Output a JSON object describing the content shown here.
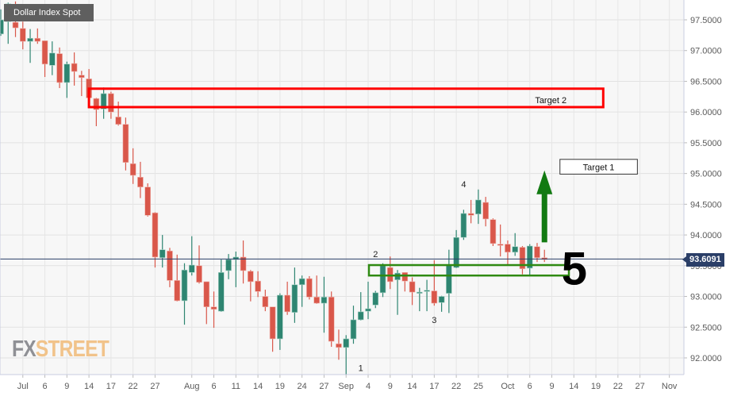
{
  "title": "Dollar Index Spot",
  "logo": {
    "part1": "FX",
    "part2": "STREET"
  },
  "current_price_label": "93.6091",
  "colors": {
    "up": "#2e8571",
    "down": "#d9574a",
    "price_line": "#2b3f68",
    "target2_box": "#ff0000",
    "support_box": "#2f8a12",
    "arrow": "#127a12"
  },
  "chart_data": {
    "type": "candlestick",
    "title": "Dollar Index Spot",
    "ylim": [
      91.7,
      97.8
    ],
    "grid": true,
    "y_ticks": [
      "92.0000",
      "92.5000",
      "93.0000",
      "93.5000",
      "94.0000",
      "94.5000",
      "95.0000",
      "95.5000",
      "96.0000",
      "96.5000",
      "97.0000",
      "97.5000"
    ],
    "x_ticks": [
      {
        "date": "2020-07-01",
        "label": "Jul"
      },
      {
        "date": "2020-07-06",
        "label": "6"
      },
      {
        "date": "2020-07-09",
        "label": "9"
      },
      {
        "date": "2020-07-14",
        "label": "14"
      },
      {
        "date": "2020-07-17",
        "label": "17"
      },
      {
        "date": "2020-07-22",
        "label": "22"
      },
      {
        "date": "2020-07-27",
        "label": "27"
      },
      {
        "date": "2020-08-03",
        "label": "Aug"
      },
      {
        "date": "2020-08-06",
        "label": "6"
      },
      {
        "date": "2020-08-11",
        "label": "11"
      },
      {
        "date": "2020-08-14",
        "label": "14"
      },
      {
        "date": "2020-08-19",
        "label": "19"
      },
      {
        "date": "2020-08-24",
        "label": "24"
      },
      {
        "date": "2020-08-27",
        "label": "27"
      },
      {
        "date": "2020-09-01",
        "label": "Sep"
      },
      {
        "date": "2020-09-04",
        "label": "4"
      },
      {
        "date": "2020-09-09",
        "label": "9"
      },
      {
        "date": "2020-09-14",
        "label": "14"
      },
      {
        "date": "2020-09-17",
        "label": "17"
      },
      {
        "date": "2020-09-22",
        "label": "22"
      },
      {
        "date": "2020-09-25",
        "label": "25"
      },
      {
        "date": "2020-10-01",
        "label": "Oct"
      },
      {
        "date": "2020-10-06",
        "label": "6"
      },
      {
        "date": "2020-10-09",
        "label": "9"
      },
      {
        "date": "2020-10-14",
        "label": "14"
      },
      {
        "date": "2020-10-19",
        "label": "19"
      },
      {
        "date": "2020-10-22",
        "label": "22"
      },
      {
        "date": "2020-10-27",
        "label": "27"
      },
      {
        "date": "2020-11-02",
        "label": "Nov"
      }
    ],
    "current_price": 93.6091,
    "columns": [
      "date",
      "open",
      "high",
      "low",
      "close"
    ],
    "candles": [
      [
        "2020-06-26",
        97.27,
        97.67,
        97.24,
        97.5
      ],
      [
        "2020-06-29",
        97.47,
        97.78,
        97.11,
        97.76
      ],
      [
        "2020-06-30",
        97.46,
        97.8,
        97.22,
        97.37
      ],
      [
        "2020-07-01",
        97.36,
        97.47,
        97.02,
        97.15
      ],
      [
        "2020-07-02",
        97.15,
        97.35,
        96.8,
        97.2
      ],
      [
        "2020-07-03",
        97.2,
        97.36,
        97.11,
        97.15
      ],
      [
        "2020-07-06",
        97.16,
        97.16,
        96.57,
        96.78
      ],
      [
        "2020-07-07",
        96.76,
        97.15,
        96.6,
        96.96
      ],
      [
        "2020-07-08",
        96.95,
        97.05,
        96.39,
        96.48
      ],
      [
        "2020-07-09",
        96.48,
        96.82,
        96.23,
        96.78
      ],
      [
        "2020-07-10",
        96.79,
        96.97,
        96.43,
        96.66
      ],
      [
        "2020-07-13",
        96.6,
        96.67,
        96.26,
        96.56
      ],
      [
        "2020-07-14",
        96.54,
        96.7,
        96.19,
        96.23
      ],
      [
        "2020-07-15",
        96.22,
        96.23,
        95.77,
        96.04
      ],
      [
        "2020-07-16",
        96.05,
        96.4,
        95.89,
        96.3
      ],
      [
        "2020-07-17",
        96.3,
        96.33,
        95.89,
        96.0
      ],
      [
        "2020-07-20",
        95.92,
        96.17,
        95.78,
        95.8
      ],
      [
        "2020-07-21",
        95.8,
        95.91,
        95.05,
        95.18
      ],
      [
        "2020-07-22",
        95.16,
        95.41,
        94.83,
        94.97
      ],
      [
        "2020-07-23",
        94.94,
        95.19,
        94.6,
        94.78
      ],
      [
        "2020-07-24",
        94.78,
        94.84,
        94.3,
        94.32
      ],
      [
        "2020-07-27",
        94.36,
        94.37,
        93.47,
        93.64
      ],
      [
        "2020-07-28",
        93.63,
        94.0,
        93.47,
        93.76
      ],
      [
        "2020-07-29",
        93.74,
        93.79,
        93.15,
        93.26
      ],
      [
        "2020-07-30",
        93.26,
        93.68,
        92.92,
        92.93
      ],
      [
        "2020-07-31",
        92.93,
        93.54,
        92.54,
        93.43
      ],
      [
        "2020-08-03",
        93.39,
        93.98,
        93.34,
        93.51
      ],
      [
        "2020-08-04",
        93.5,
        93.83,
        93.21,
        93.23
      ],
      [
        "2020-08-05",
        93.24,
        93.24,
        92.55,
        92.83
      ],
      [
        "2020-08-06",
        92.83,
        93.08,
        92.49,
        92.79
      ],
      [
        "2020-08-07",
        92.76,
        93.6,
        92.75,
        93.39
      ],
      [
        "2020-08-10",
        93.42,
        93.69,
        93.28,
        93.6
      ],
      [
        "2020-08-11",
        93.6,
        93.73,
        93.15,
        93.64
      ],
      [
        "2020-08-12",
        93.64,
        93.91,
        93.21,
        93.42
      ],
      [
        "2020-08-13",
        93.41,
        93.43,
        92.92,
        93.24
      ],
      [
        "2020-08-14",
        93.25,
        93.41,
        92.99,
        93.08
      ],
      [
        "2020-08-17",
        93.0,
        93.11,
        92.76,
        92.83
      ],
      [
        "2020-08-18",
        92.83,
        92.83,
        92.1,
        92.31
      ],
      [
        "2020-08-19",
        92.31,
        93.05,
        92.13,
        93.02
      ],
      [
        "2020-08-20",
        93.02,
        93.24,
        92.7,
        92.75
      ],
      [
        "2020-08-21",
        92.74,
        93.47,
        92.57,
        93.19
      ],
      [
        "2020-08-24",
        93.19,
        93.34,
        92.83,
        93.29
      ],
      [
        "2020-08-25",
        93.29,
        93.33,
        92.95,
        92.99
      ],
      [
        "2020-08-26",
        92.99,
        93.34,
        92.88,
        92.89
      ],
      [
        "2020-08-27",
        92.89,
        93.32,
        92.41,
        92.99
      ],
      [
        "2020-08-28",
        92.99,
        93.08,
        92.18,
        92.27
      ],
      [
        "2020-08-31",
        92.23,
        92.46,
        91.97,
        92.17
      ],
      [
        "2020-09-01",
        92.17,
        92.37,
        91.72,
        92.31
      ],
      [
        "2020-09-02",
        92.31,
        92.85,
        92.23,
        92.62
      ],
      [
        "2020-09-03",
        92.62,
        93.07,
        92.61,
        92.75
      ],
      [
        "2020-09-04",
        92.76,
        93.24,
        92.63,
        92.8
      ],
      [
        "2020-09-07",
        92.86,
        93.09,
        92.81,
        93.06
      ],
      [
        "2020-09-08",
        93.06,
        93.54,
        92.99,
        93.5
      ],
      [
        "2020-09-09",
        93.47,
        93.65,
        93.12,
        93.24
      ],
      [
        "2020-09-10",
        93.27,
        93.43,
        92.7,
        93.38
      ],
      [
        "2020-09-11",
        93.39,
        93.39,
        93.08,
        93.25
      ],
      [
        "2020-09-14",
        93.24,
        93.31,
        92.86,
        93.07
      ],
      [
        "2020-09-15",
        93.06,
        93.14,
        92.76,
        93.07
      ],
      [
        "2020-09-16",
        93.09,
        93.27,
        92.76,
        93.1
      ],
      [
        "2020-09-17",
        93.09,
        93.59,
        92.85,
        92.89
      ],
      [
        "2020-09-18",
        92.9,
        93.01,
        92.75,
        93.0
      ],
      [
        "2020-09-21",
        93.05,
        93.76,
        92.73,
        93.52
      ],
      [
        "2020-09-22",
        93.47,
        94.08,
        93.46,
        93.96
      ],
      [
        "2020-09-23",
        93.96,
        94.41,
        93.92,
        94.35
      ],
      [
        "2020-09-24",
        94.35,
        94.57,
        94.19,
        94.32
      ],
      [
        "2020-09-25",
        94.34,
        94.74,
        94.18,
        94.57
      ],
      [
        "2020-09-28",
        94.53,
        94.62,
        94.14,
        94.26
      ],
      [
        "2020-09-29",
        94.25,
        94.27,
        93.82,
        93.86
      ],
      [
        "2020-09-30",
        93.85,
        94.17,
        93.65,
        93.83
      ],
      [
        "2020-10-01",
        93.85,
        93.91,
        93.52,
        93.72
      ],
      [
        "2020-10-02",
        93.72,
        94.03,
        93.66,
        93.81
      ],
      [
        "2020-10-05",
        93.8,
        93.82,
        93.36,
        93.45
      ],
      [
        "2020-10-06",
        93.46,
        93.85,
        93.34,
        93.82
      ],
      [
        "2020-10-07",
        93.81,
        93.87,
        93.56,
        93.63
      ],
      [
        "2020-10-08",
        93.63,
        93.76,
        93.56,
        93.6
      ]
    ],
    "annotations": {
      "target2": {
        "label": "Target 2",
        "from": "2020-07-14",
        "to": "2020-10-20",
        "top": 96.38,
        "bottom": 96.08
      },
      "target1": {
        "label": "Target 1",
        "from": "2020-10-12",
        "to": "2020-10-26",
        "top": 95.23,
        "bottom": 94.99
      },
      "support_zone": {
        "from": "2020-09-04",
        "to": "2020-10-13",
        "top": 93.51,
        "bottom": 93.34
      },
      "arrow": {
        "date": "2020-10-08",
        "from": 93.88,
        "to": 95.05
      },
      "waves": [
        {
          "label": "1",
          "date": "2020-09-03",
          "price": 91.84
        },
        {
          "label": "2",
          "date": "2020-09-07",
          "price": 93.69
        },
        {
          "label": "3",
          "date": "2020-09-17",
          "price": 92.62
        },
        {
          "label": "4",
          "date": "2020-09-23",
          "price": 94.83
        },
        {
          "label": "5",
          "date": "2020-10-12",
          "price": 93.45,
          "large": true
        }
      ]
    }
  }
}
